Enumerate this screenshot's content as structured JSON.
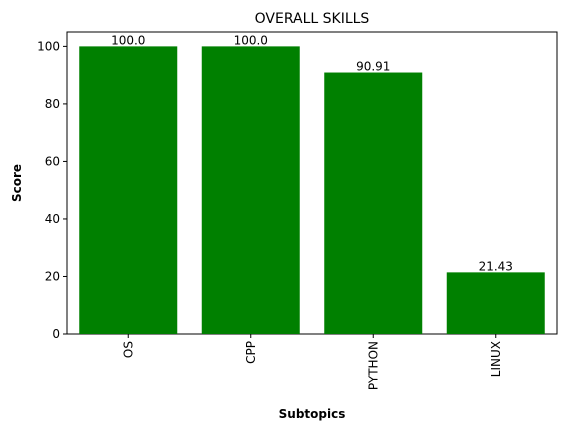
{
  "chart_data": {
    "type": "bar",
    "title": "OVERALL SKILLS",
    "xlabel": "Subtopics",
    "ylabel": "Score",
    "categories": [
      "OS",
      "CPP",
      "PYTHON",
      "LINUX"
    ],
    "values": [
      100.0,
      100.0,
      90.91,
      21.43
    ],
    "value_labels": [
      "100.0",
      "100.0",
      "90.91",
      "21.43"
    ],
    "ylim": [
      0,
      105
    ],
    "yticks": [
      0,
      20,
      40,
      60,
      80,
      100
    ],
    "bar_color": "#008000",
    "grid": false,
    "x_tick_rotation": "vertical"
  }
}
